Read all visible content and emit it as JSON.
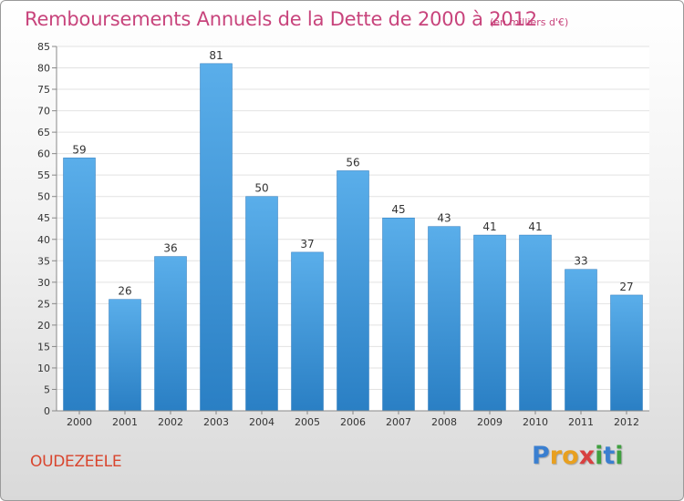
{
  "chart_data": {
    "type": "bar",
    "title": "Remboursements Annuels de la Dette de 2000 à 2012",
    "subtitle": "(en milliers d'€)",
    "categories": [
      "2000",
      "2001",
      "2002",
      "2003",
      "2004",
      "2005",
      "2006",
      "2007",
      "2008",
      "2009",
      "2010",
      "2011",
      "2012"
    ],
    "values": [
      59,
      26,
      36,
      81,
      50,
      37,
      56,
      45,
      43,
      41,
      41,
      33,
      27
    ],
    "ylim": [
      0,
      85
    ],
    "ytick_step": 5,
    "xlabel": "",
    "ylabel": "",
    "grid": true
  },
  "footer": {
    "commune": "OUDEZEELE",
    "logo_letters": [
      "P",
      "r",
      "o",
      "x",
      "i",
      "t",
      "i"
    ]
  },
  "colors": {
    "title": "#c8447c",
    "commune": "#d9452e",
    "bar_top": "#5aaeea",
    "bar_bottom": "#2a7fc4",
    "logo": [
      "#3a7fd0",
      "#e8a020",
      "#e8a020",
      "#d84040",
      "#40a040",
      "#3a7fd0",
      "#40a040"
    ]
  }
}
